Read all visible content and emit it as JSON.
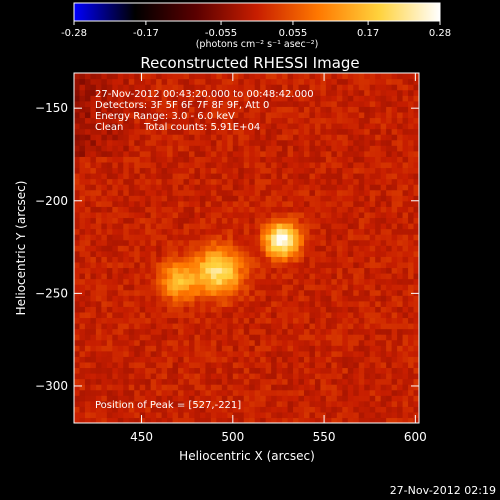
{
  "chart_data": {
    "type": "heatmap",
    "title": "Reconstructed RHESSI Image",
    "xlabel": "Heliocentric X (arcsec)",
    "ylabel": "Heliocentric Y (arcsec)",
    "xlim": [
      413,
      602
    ],
    "ylim": [
      -320,
      -131
    ],
    "xticks": [
      450,
      500,
      550,
      600
    ],
    "yticks": [
      -150,
      -200,
      -250,
      -300
    ],
    "colorbar": {
      "range": [
        -0.28,
        0.28
      ],
      "ticks": [
        -0.28,
        -0.17,
        -0.055,
        0.055,
        0.17,
        0.28
      ],
      "tick_labels": [
        "-0.28",
        "-0.17",
        "-0.055",
        "0.055",
        "0.17",
        "0.28"
      ],
      "unit_label": "(photons cm⁻² s⁻¹ asec⁻²)",
      "colors": [
        "#0000ff",
        "#000000",
        "#5a0000",
        "#c81e00",
        "#ff7800",
        "#ffd23c",
        "#ffffff"
      ]
    },
    "annotations": {
      "time_range": "27-Nov-2012 00:43:20.000 to 00:48:42.000",
      "detectors": "Detectors: 3F 5F 6F 7F 8F 9F, Att 0",
      "energy": "Energy Range: 3.0 - 6.0 keV",
      "algorithm": "Clean",
      "counts": "Total counts: 5.91E+04",
      "peak": "Position of Peak = [527,-221]"
    },
    "sources": [
      {
        "x": 527,
        "y": -221,
        "peak": 0.28,
        "sigma": 6.5
      },
      {
        "x": 492,
        "y": -238,
        "peak": 0.22,
        "sigma": 9
      },
      {
        "x": 470,
        "y": -243,
        "peak": 0.16,
        "sigma": 7
      }
    ],
    "background_level": 0.07
  },
  "footer": {
    "timestamp": "27-Nov-2012 02:19"
  }
}
